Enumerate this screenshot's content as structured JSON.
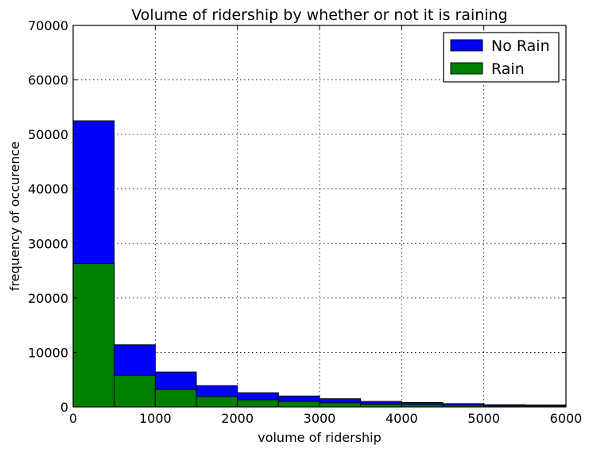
{
  "chart_data": {
    "type": "bar",
    "title": "Volume of ridership by whether or not it is raining",
    "xlabel": "volume of ridership",
    "ylabel": "frequency of occurence",
    "xlim": [
      0,
      6000
    ],
    "ylim": [
      0,
      70000
    ],
    "xticks": [
      "0",
      "1000",
      "2000",
      "3000",
      "4000",
      "5000",
      "6000"
    ],
    "yticks": [
      "0",
      "10000",
      "20000",
      "30000",
      "40000",
      "50000",
      "60000",
      "70000"
    ],
    "grid": true,
    "legend": "top-right",
    "bin_edges": [
      0,
      500,
      1000,
      1500,
      2000,
      2500,
      3000,
      3500,
      4000,
      4500,
      5000,
      5500,
      6000
    ],
    "series": [
      {
        "name": "No Rain",
        "color": "#0000ff",
        "values": [
          52500,
          11400,
          6400,
          3900,
          2600,
          2000,
          1500,
          1000,
          800,
          600,
          400,
          350
        ]
      },
      {
        "name": "Rain",
        "color": "#008000",
        "values": [
          26300,
          5800,
          3200,
          1900,
          1300,
          1000,
          750,
          500,
          400,
          300,
          200,
          180
        ]
      }
    ]
  }
}
